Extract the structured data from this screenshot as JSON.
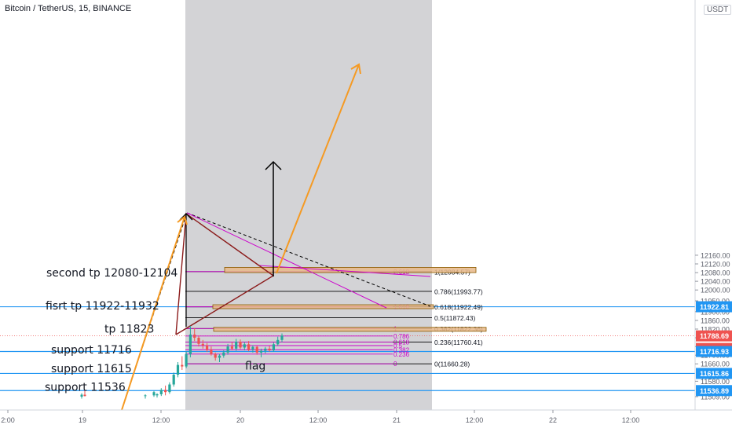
{
  "header": {
    "title": "Bitcoin / TetherUS, 15, BINANCE",
    "currency_button": "USDT"
  },
  "colors": {
    "background": "#ffffff",
    "zone": "#d1d1d4",
    "blue_line": "#2196f3",
    "fib_line": "#000000",
    "fib_extension": "#cc00cc",
    "tp_box_fill": "#e8b98a",
    "tp_box_border": "#8b5a00",
    "arrow_orange": "#f59a23",
    "flag_line": "#8b1a1a",
    "retrace_line": "#cc00cc",
    "candle_up": "#26a69a",
    "candle_down": "#ef5350",
    "current_price_badge": "#ef5350"
  },
  "chart_data": {
    "type": "candlestick",
    "symbol": "Bitcoin / TetherUS",
    "interval": "15",
    "exchange": "BINANCE",
    "y_axis": {
      "ticks": [
        12160.0,
        12120.0,
        12080.0,
        12040.0,
        12000.0,
        11950.0,
        11900.0,
        11860.0,
        11820.0,
        11780.0,
        11740.0,
        11700.0,
        11660.0,
        11580.0,
        11509.0
      ],
      "range": [
        11495,
        12200
      ]
    },
    "x_axis": {
      "ticks": [
        "2:00",
        "19",
        "12:00",
        "20",
        "12:00",
        "21",
        "12:00",
        "22",
        "12:00"
      ]
    },
    "price_labels": [
      {
        "value": 11922.81,
        "label": "11922.81",
        "style": "blue"
      },
      {
        "value": 11788.69,
        "label": "11788.69",
        "style": "current"
      },
      {
        "value": 11770.0,
        "label": "07:33",
        "style": "countdown"
      },
      {
        "value": 11716.93,
        "label": "11716.93",
        "style": "blue"
      },
      {
        "value": 11615.86,
        "label": "11615.86",
        "style": "blue"
      },
      {
        "value": 11536.89,
        "label": "11536.89",
        "style": "blue"
      }
    ],
    "horizontal_lines": [
      {
        "price": 11922.81
      },
      {
        "price": 11716.93
      },
      {
        "price": 11615.86
      },
      {
        "price": 11536.89
      }
    ],
    "fib_retracement": {
      "levels": [
        {
          "ratio": "1",
          "price": 12084.57,
          "label": "1(12084.57)"
        },
        {
          "ratio": "0.786",
          "price": 11993.77,
          "label": "0.786(11993.77)"
        },
        {
          "ratio": "0.618",
          "price": 11922.49,
          "label": "0.618(11922.49)"
        },
        {
          "ratio": "0.5",
          "price": 11872.43,
          "label": "0.5(11872.43)"
        },
        {
          "ratio": "0.382",
          "price": 11822.36,
          "label": "0.382(11822.36)"
        },
        {
          "ratio": "0.236",
          "price": 11760.41,
          "label": "0.236(11760.41)"
        },
        {
          "ratio": "0",
          "price": 11660.28,
          "label": "0(11660.28)"
        }
      ]
    },
    "fib_extension": {
      "levels": [
        {
          "label": "2.618",
          "price": 12084.57
        },
        {
          "label": "1.618",
          "price": 11922.49
        },
        {
          "label": "1",
          "price": 11822.36
        },
        {
          "label": "0.786",
          "price": 11788.0
        },
        {
          "label": "0.618",
          "price": 11760.41
        },
        {
          "label": "0.5",
          "price": 11744.0
        },
        {
          "label": "0.382",
          "price": 11725.0
        },
        {
          "label": "0.236",
          "price": 11705.0
        },
        {
          "label": "0",
          "price": 11660.28
        }
      ]
    },
    "tp_zones": [
      {
        "price_low": 12080,
        "price_high": 12104
      },
      {
        "price_low": 11922,
        "price_high": 11932
      },
      {
        "price_low": 11818,
        "price_high": 11828
      }
    ],
    "annotations": [
      {
        "text": "second tp 12080-12104",
        "price": 12080
      },
      {
        "text": "fisrt tp 11922-11932",
        "price": 11928
      },
      {
        "text": "tp 11823",
        "price": 11821
      },
      {
        "text": "support 11716",
        "price": 11726
      },
      {
        "text": "support 11615",
        "price": 11639
      },
      {
        "text": "support 11536",
        "price": 11555
      },
      {
        "text": "flag",
        "price": 11652
      }
    ],
    "candles": [
      [
        11515,
        11525,
        11505,
        11520
      ],
      [
        11520,
        11548,
        11512,
        11540
      ],
      [
        11540,
        11560,
        11515,
        11530
      ],
      [
        11530,
        11575,
        11522,
        11565
      ],
      [
        11565,
        11620,
        11555,
        11610
      ],
      [
        11610,
        11668,
        11598,
        11655
      ],
      [
        11655,
        11695,
        11632,
        11648
      ],
      [
        11648,
        11718,
        11640,
        11705
      ],
      [
        11705,
        11835,
        11690,
        11795
      ],
      [
        11795,
        11825,
        11765,
        11780
      ],
      [
        11780,
        11790,
        11740,
        11752
      ],
      [
        11752,
        11770,
        11730,
        11745
      ],
      [
        11745,
        11756,
        11715,
        11725
      ],
      [
        11725,
        11740,
        11698,
        11705
      ],
      [
        11705,
        11712,
        11675,
        11688
      ],
      [
        11688,
        11705,
        11668,
        11698
      ],
      [
        11698,
        11722,
        11688,
        11712
      ],
      [
        11712,
        11752,
        11702,
        11740
      ],
      [
        11740,
        11760,
        11722,
        11730
      ],
      [
        11730,
        11775,
        11720,
        11762
      ],
      [
        11762,
        11772,
        11728,
        11735
      ],
      [
        11735,
        11760,
        11722,
        11750
      ],
      [
        11750,
        11765,
        11718,
        11725
      ],
      [
        11725,
        11745,
        11712,
        11738
      ],
      [
        11738,
        11744,
        11702,
        11712
      ],
      [
        11712,
        11730,
        11690,
        11720
      ],
      [
        11720,
        11738,
        11708,
        11730
      ],
      [
        11730,
        11742,
        11716,
        11722
      ],
      [
        11722,
        11758,
        11716,
        11750
      ],
      [
        11750,
        11785,
        11742,
        11770
      ],
      [
        11770,
        11800,
        11760,
        11790
      ]
    ],
    "candle_x_range": [
      12,
      360
    ],
    "historical_candles": [
      [
        11509,
        11525,
        11500,
        11518
      ],
      [
        11518,
        11540,
        11510,
        11512
      ],
      [
        11512,
        11520,
        11500,
        11515
      ],
      [
        11515,
        11535,
        11508,
        11530
      ]
    ]
  }
}
